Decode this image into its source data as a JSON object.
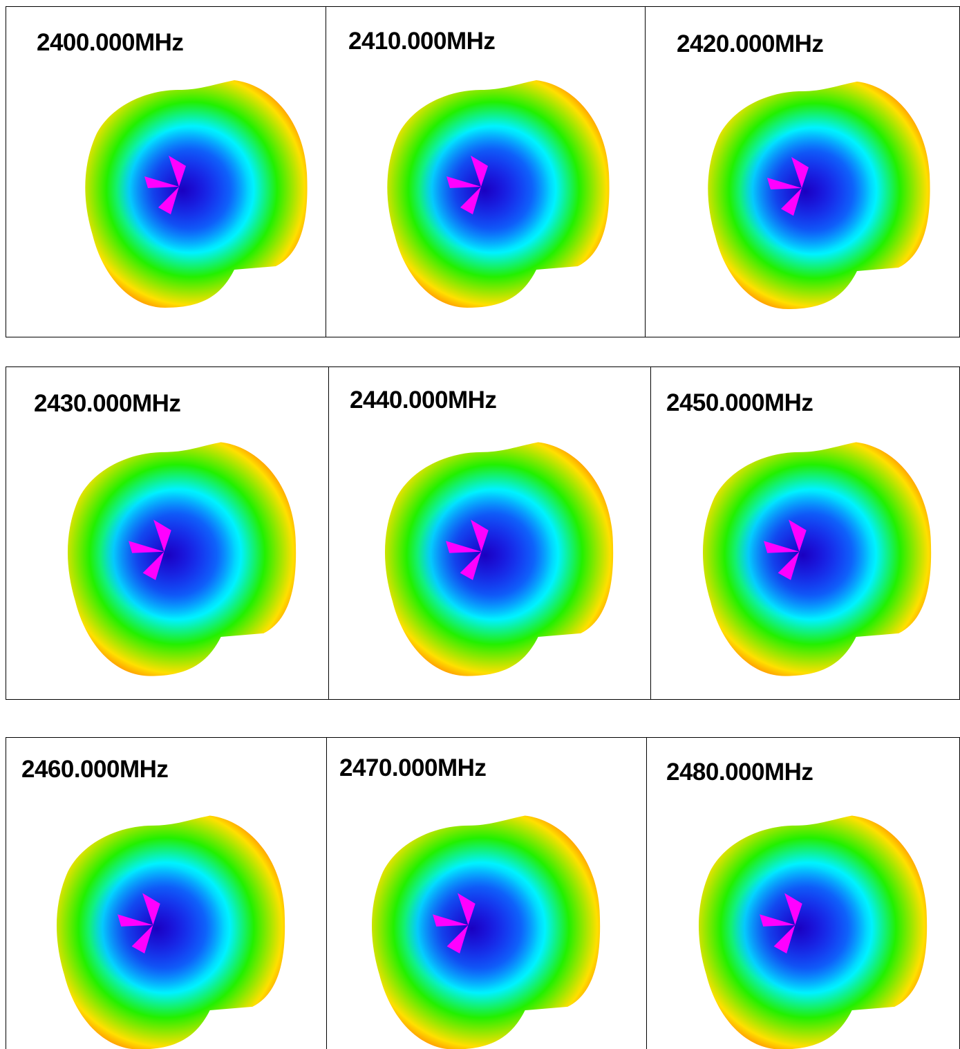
{
  "rows": [
    {
      "panels": [
        {
          "label": "2400.000MHz",
          "pattern_icon": "3d-radiation-pattern"
        },
        {
          "label": "2410.000MHz",
          "pattern_icon": "3d-radiation-pattern"
        },
        {
          "label": "2420.000MHz",
          "pattern_icon": "3d-radiation-pattern"
        }
      ]
    },
    {
      "panels": [
        {
          "label": "2430.000MHz",
          "pattern_icon": "3d-radiation-pattern"
        },
        {
          "label": "2440.000MHz",
          "pattern_icon": "3d-radiation-pattern"
        },
        {
          "label": "2450.000MHz",
          "pattern_icon": "3d-radiation-pattern"
        }
      ]
    },
    {
      "panels": [
        {
          "label": "2460.000MHz",
          "pattern_icon": "3d-radiation-pattern"
        },
        {
          "label": "2470.000MHz",
          "pattern_icon": "3d-radiation-pattern"
        },
        {
          "label": "2480.000MHz",
          "pattern_icon": "3d-radiation-pattern"
        }
      ]
    }
  ],
  "colors": {
    "edge": "#ff2a00",
    "warm": "#ffe000",
    "mid": "#22f000",
    "cool": "#00f2ff",
    "low": "#1a2cff",
    "null": "#ff00ff",
    "border": "#000000"
  }
}
